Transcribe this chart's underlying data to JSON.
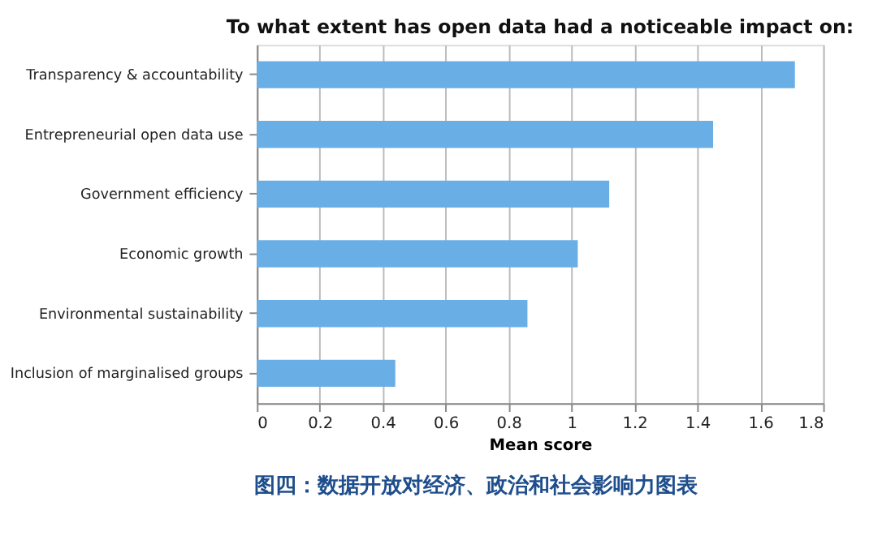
{
  "chart_data": {
    "type": "bar",
    "orientation": "horizontal",
    "title": "To what extent has open data had a noticeable impact on:",
    "xlabel": "Mean score",
    "categories": [
      "Transparency & accountability",
      "Entrepreneurial open data use",
      "Government efficiency",
      "Economic growth",
      "Environmental sustainability",
      "Inclusion of marginalised groups"
    ],
    "values": [
      1.71,
      1.45,
      1.12,
      1.02,
      0.86,
      0.44
    ],
    "color": "#6aaee6",
    "xlim": [
      0,
      1.8
    ],
    "xticks": [
      0,
      0.2,
      0.4,
      0.6,
      0.8,
      1,
      1.2,
      1.4,
      1.6,
      1.8
    ],
    "grid": "x",
    "annotations": [
      "图四：数据开放对经济、政治和社会影响力图表"
    ]
  }
}
